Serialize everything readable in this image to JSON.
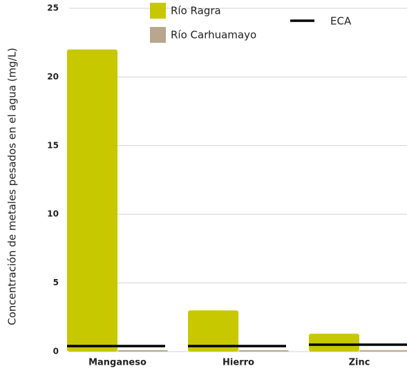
{
  "chart_data": {
    "type": "bar",
    "y_label": "Concentración de metales pesados en el agua  (mg/L)",
    "categories": [
      "Manganeso",
      "Hierro",
      "Zinc"
    ],
    "series": [
      {
        "name": "Río Ragra",
        "color": "#c8c800",
        "values": [
          22,
          3,
          1.3
        ]
      },
      {
        "name": "Río Carhuamayo",
        "color": "#b9a68f",
        "values": [
          0.1,
          0.1,
          0.1
        ]
      }
    ],
    "eca": {
      "name": "ECA",
      "color": "#000000",
      "values": [
        0.4,
        0.4,
        0.5
      ]
    },
    "ylim": [
      0,
      25
    ],
    "yticks": [
      0,
      5,
      10,
      15,
      20,
      25
    ],
    "grid": true
  }
}
